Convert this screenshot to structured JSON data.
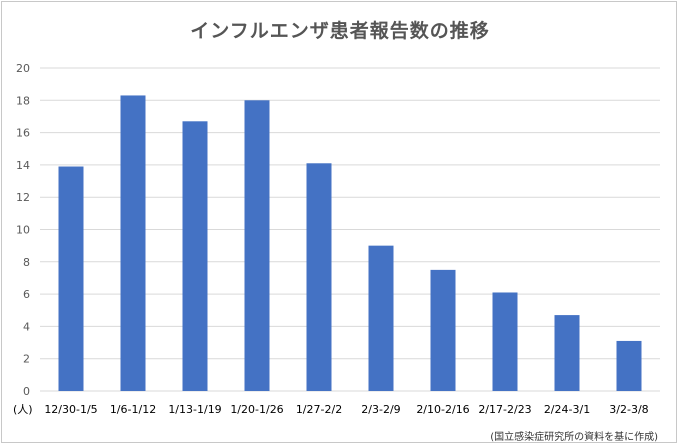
{
  "chart_data": {
    "type": "bar",
    "title": "インフルエンザ患者報告数の推移",
    "unit_label": "(人)",
    "source_note": "(国立感染症研究所の資料を基に作成)",
    "categories": [
      "12/30-1/5",
      "1/6-1/12",
      "1/13-1/19",
      "1/20-1/26",
      "1/27-2/2",
      "2/3-2/9",
      "2/10-2/16",
      "2/17-2/23",
      "2/24-3/1",
      "3/2-3/8"
    ],
    "values": [
      13.9,
      18.3,
      16.7,
      18.0,
      14.1,
      9.0,
      7.5,
      6.1,
      4.7,
      3.1
    ],
    "ylim": [
      0,
      20
    ],
    "yticks": [
      0,
      2,
      4,
      6,
      8,
      10,
      12,
      14,
      16,
      18,
      20
    ],
    "grid": true,
    "legend": "none",
    "bar_color": "#4472c4",
    "grid_color": "#d9d9d9"
  }
}
